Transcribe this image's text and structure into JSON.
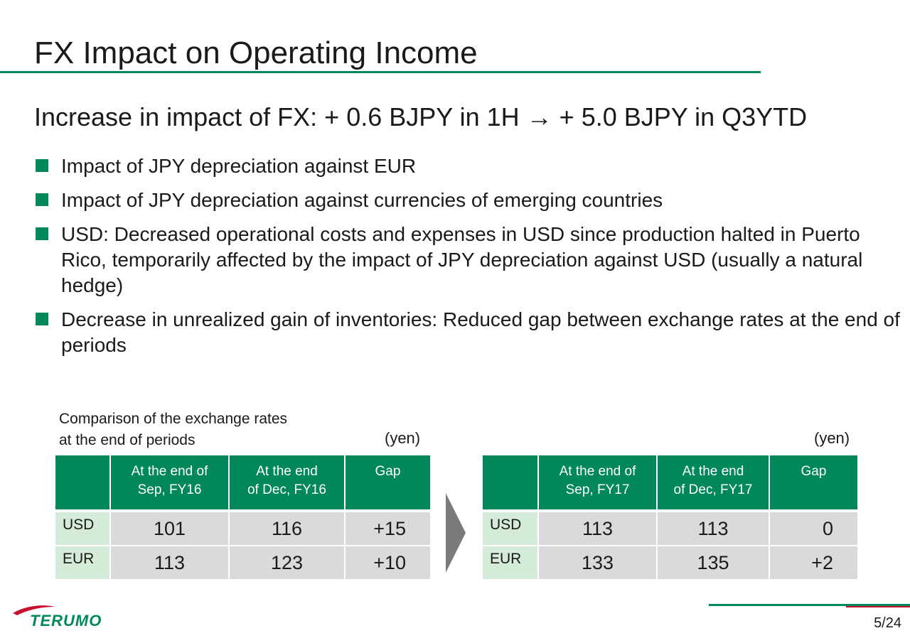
{
  "slide": {
    "title": "FX Impact on Operating Income",
    "subtitle": "Increase in impact of FX: + 0.6 BJPY in 1H → + 5.0 BJPY in Q3YTD",
    "bullets": [
      "Impact of JPY depreciation against EUR",
      "Impact of JPY depreciation against currencies of emerging countries",
      "USD: Decreased operational costs and expenses in USD since production halted in Puerto Rico, temporarily affected by the impact of JPY depreciation against USD (usually a natural hedge)",
      "Decrease in unrealized gain of inventories: Reduced gap between exchange rates at the end of periods"
    ],
    "caption_line1": "Comparison of the exchange rates",
    "caption_line2": "at the end of periods"
  },
  "tables": {
    "fy16": {
      "unit": "(yen)",
      "headers": [
        {
          "line1": "At the end of",
          "line2": "Sep, FY16"
        },
        {
          "line1": "At the end",
          "line2": "of Dec, FY16"
        },
        {
          "line1": "Gap",
          "line2": ""
        }
      ],
      "rows": [
        {
          "currency": "USD",
          "sep": "101",
          "dec": "116",
          "gap": "+15"
        },
        {
          "currency": "EUR",
          "sep": "113",
          "dec": "123",
          "gap": "+10"
        }
      ]
    },
    "fy17": {
      "unit": "(yen)",
      "headers": [
        {
          "line1": "At the end of",
          "line2": "Sep, FY17"
        },
        {
          "line1": "At the end",
          "line2": "of Dec, FY17"
        },
        {
          "line1": "Gap",
          "line2": ""
        }
      ],
      "rows": [
        {
          "currency": "USD",
          "sep": "113",
          "dec": "113",
          "gap": "0"
        },
        {
          "currency": "EUR",
          "sep": "133",
          "dec": "135",
          "gap": "+2"
        }
      ]
    }
  },
  "footer": {
    "logo_text": "TERUMO",
    "page_number": "5/24",
    "brand_green": "#00875a",
    "brand_red": "#c8102e"
  }
}
